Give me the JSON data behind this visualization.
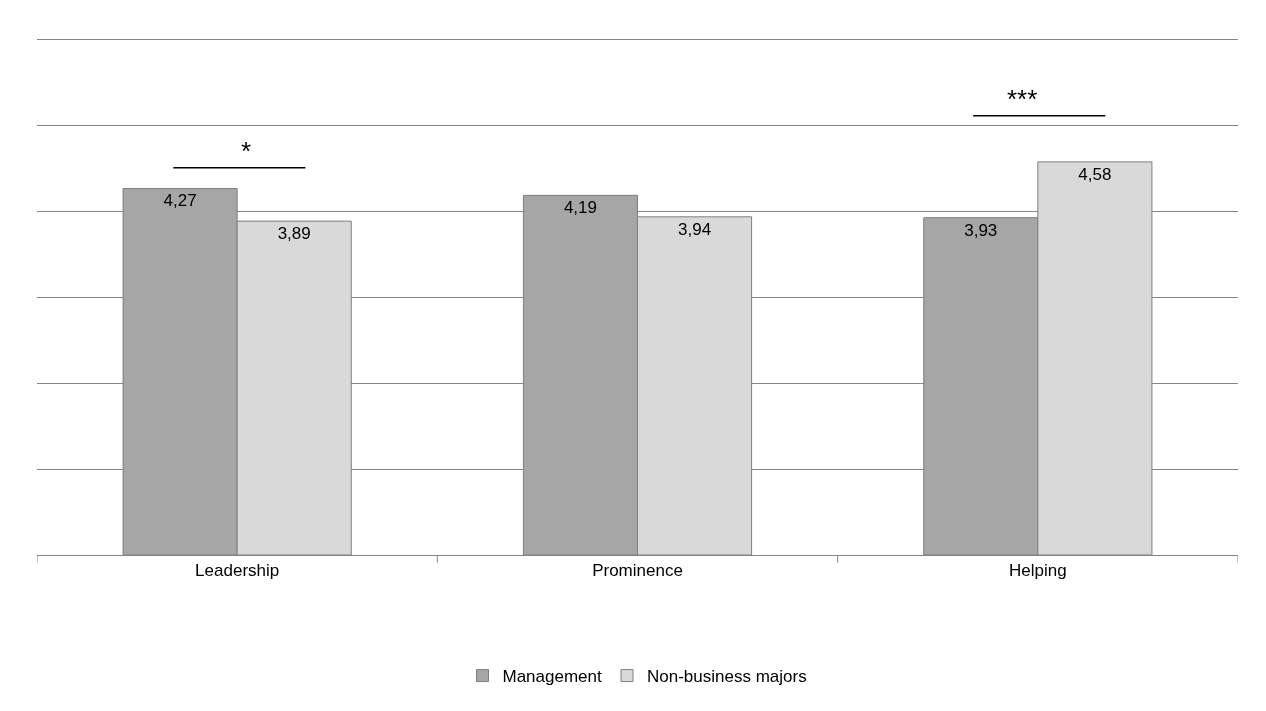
{
  "chart_data": {
    "type": "bar",
    "categories": [
      "Leadership",
      "Prominence",
      "Helping"
    ],
    "series": [
      {
        "name": "Management",
        "color": "#a6a6a6",
        "values": [
          4.27,
          4.19,
          3.93
        ],
        "value_labels": [
          "4,27",
          "4,19",
          "3,93"
        ]
      },
      {
        "name": "Non-business majors",
        "color": "#d9d9d9",
        "values": [
          3.89,
          3.94,
          4.58
        ],
        "value_labels": [
          "3,89",
          "3,94",
          "4,58"
        ]
      }
    ],
    "ylim": [
      0,
      6
    ],
    "yticks": [
      {
        "value": 0,
        "label": null
      },
      {
        "value": 1,
        "label": null
      },
      {
        "value": 2,
        "label": null
      },
      {
        "value": 3,
        "label": null
      },
      {
        "value": 4,
        "label": null
      },
      {
        "value": 5,
        "label": null
      },
      {
        "value": 6,
        "label": null
      }
    ],
    "grid": "y",
    "tick_labels": "x",
    "legend": "bottom",
    "annotations": [
      "*",
      "***"
    ]
  }
}
